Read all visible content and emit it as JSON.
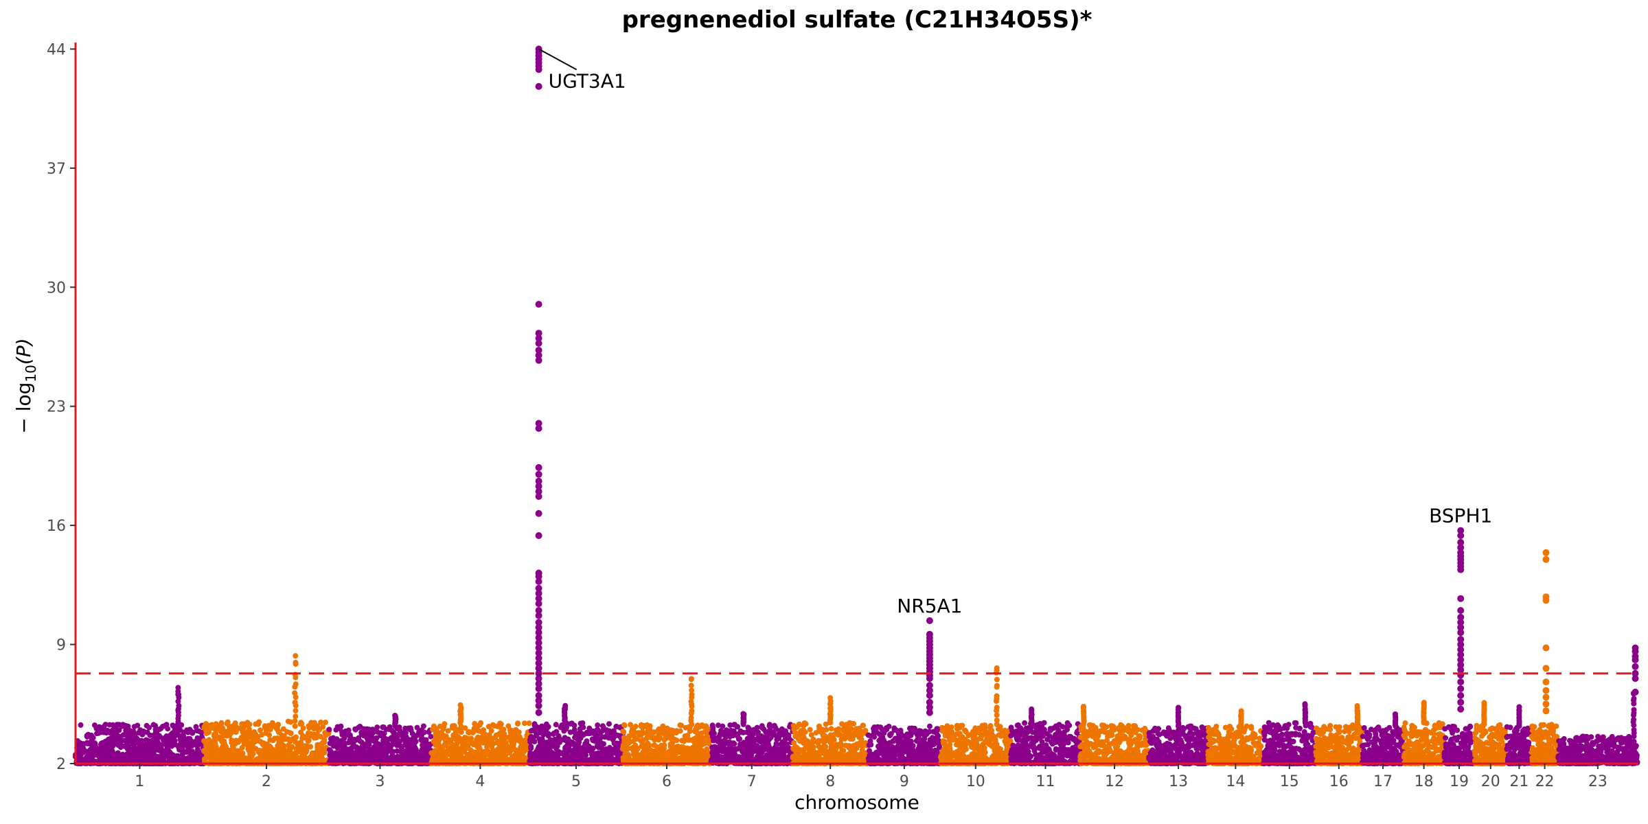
{
  "chart_data": {
    "type": "scatter",
    "subtype": "manhattan",
    "title": "pregnenediol sulfate (C21H34O5S)*",
    "xlabel": "chromosome",
    "ylabel_prefix": "− log",
    "ylabel_sub": "10",
    "ylabel_suffix": "(P)",
    "ylim": [
      2,
      44.3
    ],
    "y_ticks": [
      "2",
      "9",
      "16",
      "23",
      "30",
      "37",
      "44"
    ],
    "y_tick_values": [
      2,
      9,
      16,
      23,
      30,
      37,
      44
    ],
    "threshold": 7.3,
    "threshold_color": "#e41a1c",
    "axis_color": "#e41a1c",
    "colors": {
      "odd": "#8b008b",
      "even": "#ee7600"
    },
    "grid": false,
    "chromosomes": [
      {
        "label": "1",
        "len": 249,
        "base": 4.3,
        "peaks": [
          {
            "pos": 0.8,
            "h": 6.6
          }
        ]
      },
      {
        "label": "2",
        "len": 243,
        "base": 4.5,
        "peaks": [
          {
            "pos": 0.73,
            "h": 8.6
          }
        ]
      },
      {
        "label": "3",
        "len": 198,
        "base": 4.2,
        "peaks": [
          {
            "pos": 0.65,
            "h": 4.9
          }
        ]
      },
      {
        "label": "4",
        "len": 191,
        "base": 4.4,
        "peaks": [
          {
            "pos": 0.3,
            "h": 5.5
          }
        ]
      },
      {
        "label": "5",
        "len": 181,
        "base": 4.4,
        "peaks": [
          {
            "pos": 0.38,
            "h": 5.5
          }
        ]
      },
      {
        "label": "6",
        "len": 171,
        "base": 4.3,
        "peaks": [
          {
            "pos": 0.78,
            "h": 7.2
          }
        ]
      },
      {
        "label": "7",
        "len": 159,
        "base": 4.3,
        "peaks": [
          {
            "pos": 0.4,
            "h": 5.0
          }
        ]
      },
      {
        "label": "8",
        "len": 146,
        "base": 4.4,
        "peaks": [
          {
            "pos": 0.5,
            "h": 5.9
          }
        ]
      },
      {
        "label": "9",
        "len": 141,
        "base": 4.2,
        "peaks": []
      },
      {
        "label": "10",
        "len": 136,
        "base": 4.3,
        "peaks": [
          {
            "pos": 0.8,
            "h": 7.9
          }
        ]
      },
      {
        "label": "11",
        "len": 135,
        "base": 4.4,
        "peaks": [
          {
            "pos": 0.3,
            "h": 5.3
          }
        ]
      },
      {
        "label": "12",
        "len": 133,
        "base": 4.3,
        "peaks": [
          {
            "pos": 0.05,
            "h": 5.5
          }
        ]
      },
      {
        "label": "13",
        "len": 115,
        "base": 4.2,
        "peaks": [
          {
            "pos": 0.5,
            "h": 5.4
          }
        ]
      },
      {
        "label": "14",
        "len": 107,
        "base": 4.2,
        "peaks": [
          {
            "pos": 0.6,
            "h": 5.1
          }
        ]
      },
      {
        "label": "15",
        "len": 102,
        "base": 4.4,
        "peaks": [
          {
            "pos": 0.8,
            "h": 5.6
          }
        ]
      },
      {
        "label": "16",
        "len": 90,
        "base": 4.3,
        "peaks": [
          {
            "pos": 0.9,
            "h": 5.4
          }
        ]
      },
      {
        "label": "17",
        "len": 81,
        "base": 4.2,
        "peaks": [
          {
            "pos": 0.8,
            "h": 5.0
          }
        ]
      },
      {
        "label": "18",
        "len": 78,
        "base": 4.4,
        "peaks": [
          {
            "pos": 0.5,
            "h": 5.6
          }
        ]
      },
      {
        "label": "19",
        "len": 59,
        "base": 4.2,
        "peaks": []
      },
      {
        "label": "20",
        "len": 63,
        "base": 4.3,
        "peaks": [
          {
            "pos": 0.3,
            "h": 5.8
          }
        ]
      },
      {
        "label": "21",
        "len": 48,
        "base": 4.2,
        "peaks": [
          {
            "pos": 0.5,
            "h": 5.5
          }
        ]
      },
      {
        "label": "22",
        "len": 51,
        "base": 4.3,
        "peaks": []
      },
      {
        "label": "23",
        "len": 155,
        "base": 3.6,
        "peaks": [
          {
            "pos": 0.95,
            "h": 6.5
          }
        ]
      }
    ],
    "tall_loci": [
      {
        "chr": "5",
        "pos": 0.1,
        "values": [
          44.0,
          43.8,
          43.6,
          43.4,
          43.2,
          43.0,
          42.8,
          41.8,
          29.0,
          27.3,
          27.0,
          26.7,
          26.3,
          26.0,
          25.7,
          22.0,
          21.7,
          19.4,
          19.0,
          18.6,
          18.3,
          18.0,
          17.7,
          16.7,
          15.4,
          13.2,
          13.0,
          12.7,
          12.3,
          12.0,
          11.7,
          11.4,
          11.0,
          10.7,
          10.3,
          10.0,
          9.7,
          9.4,
          9.1,
          8.8,
          8.5,
          8.2,
          7.9,
          7.6,
          7.3,
          7.0,
          6.7,
          6.4,
          6.0,
          5.7,
          5.4,
          5.0
        ]
      },
      {
        "chr": "9",
        "pos": 0.85,
        "values": [
          10.4,
          9.6,
          9.4,
          9.2,
          9.0,
          8.8,
          8.6,
          8.4,
          8.2,
          8.0,
          7.8,
          7.6,
          7.4,
          7.2,
          7.0,
          6.6,
          6.3,
          6.0,
          5.6,
          5.3,
          5.0
        ]
      },
      {
        "chr": "19",
        "pos": 0.55,
        "values": [
          15.7,
          15.4,
          15.0,
          14.7,
          14.4,
          14.2,
          14.0,
          13.8,
          13.6,
          13.4,
          11.7,
          11.0,
          10.6,
          10.3,
          10.0,
          9.7,
          9.3,
          9.0,
          8.7,
          8.4,
          8.1,
          7.8,
          7.5,
          7.2,
          6.8,
          6.4,
          6.0,
          5.6,
          5.2
        ]
      },
      {
        "chr": "22",
        "pos": 0.55,
        "values": [
          14.4,
          14.0,
          11.8,
          11.6,
          8.8,
          7.6,
          6.8,
          6.3,
          5.9,
          5.5,
          5.1
        ]
      },
      {
        "chr": "23",
        "pos": 0.97,
        "values": [
          8.8,
          8.6,
          8.3,
          8.1,
          7.7,
          7.3,
          7.0,
          6.2
        ]
      }
    ],
    "annotations": [
      {
        "label": "UGT3A1",
        "chr": "5",
        "pos": 0.1,
        "y": 44.0,
        "leader": true
      },
      {
        "label": "NR5A1",
        "chr": "9",
        "pos": 0.85,
        "y": 10.4,
        "leader": false
      },
      {
        "label": "BSPH1",
        "chr": "19",
        "pos": 0.55,
        "y": 15.7,
        "leader": false
      }
    ]
  }
}
